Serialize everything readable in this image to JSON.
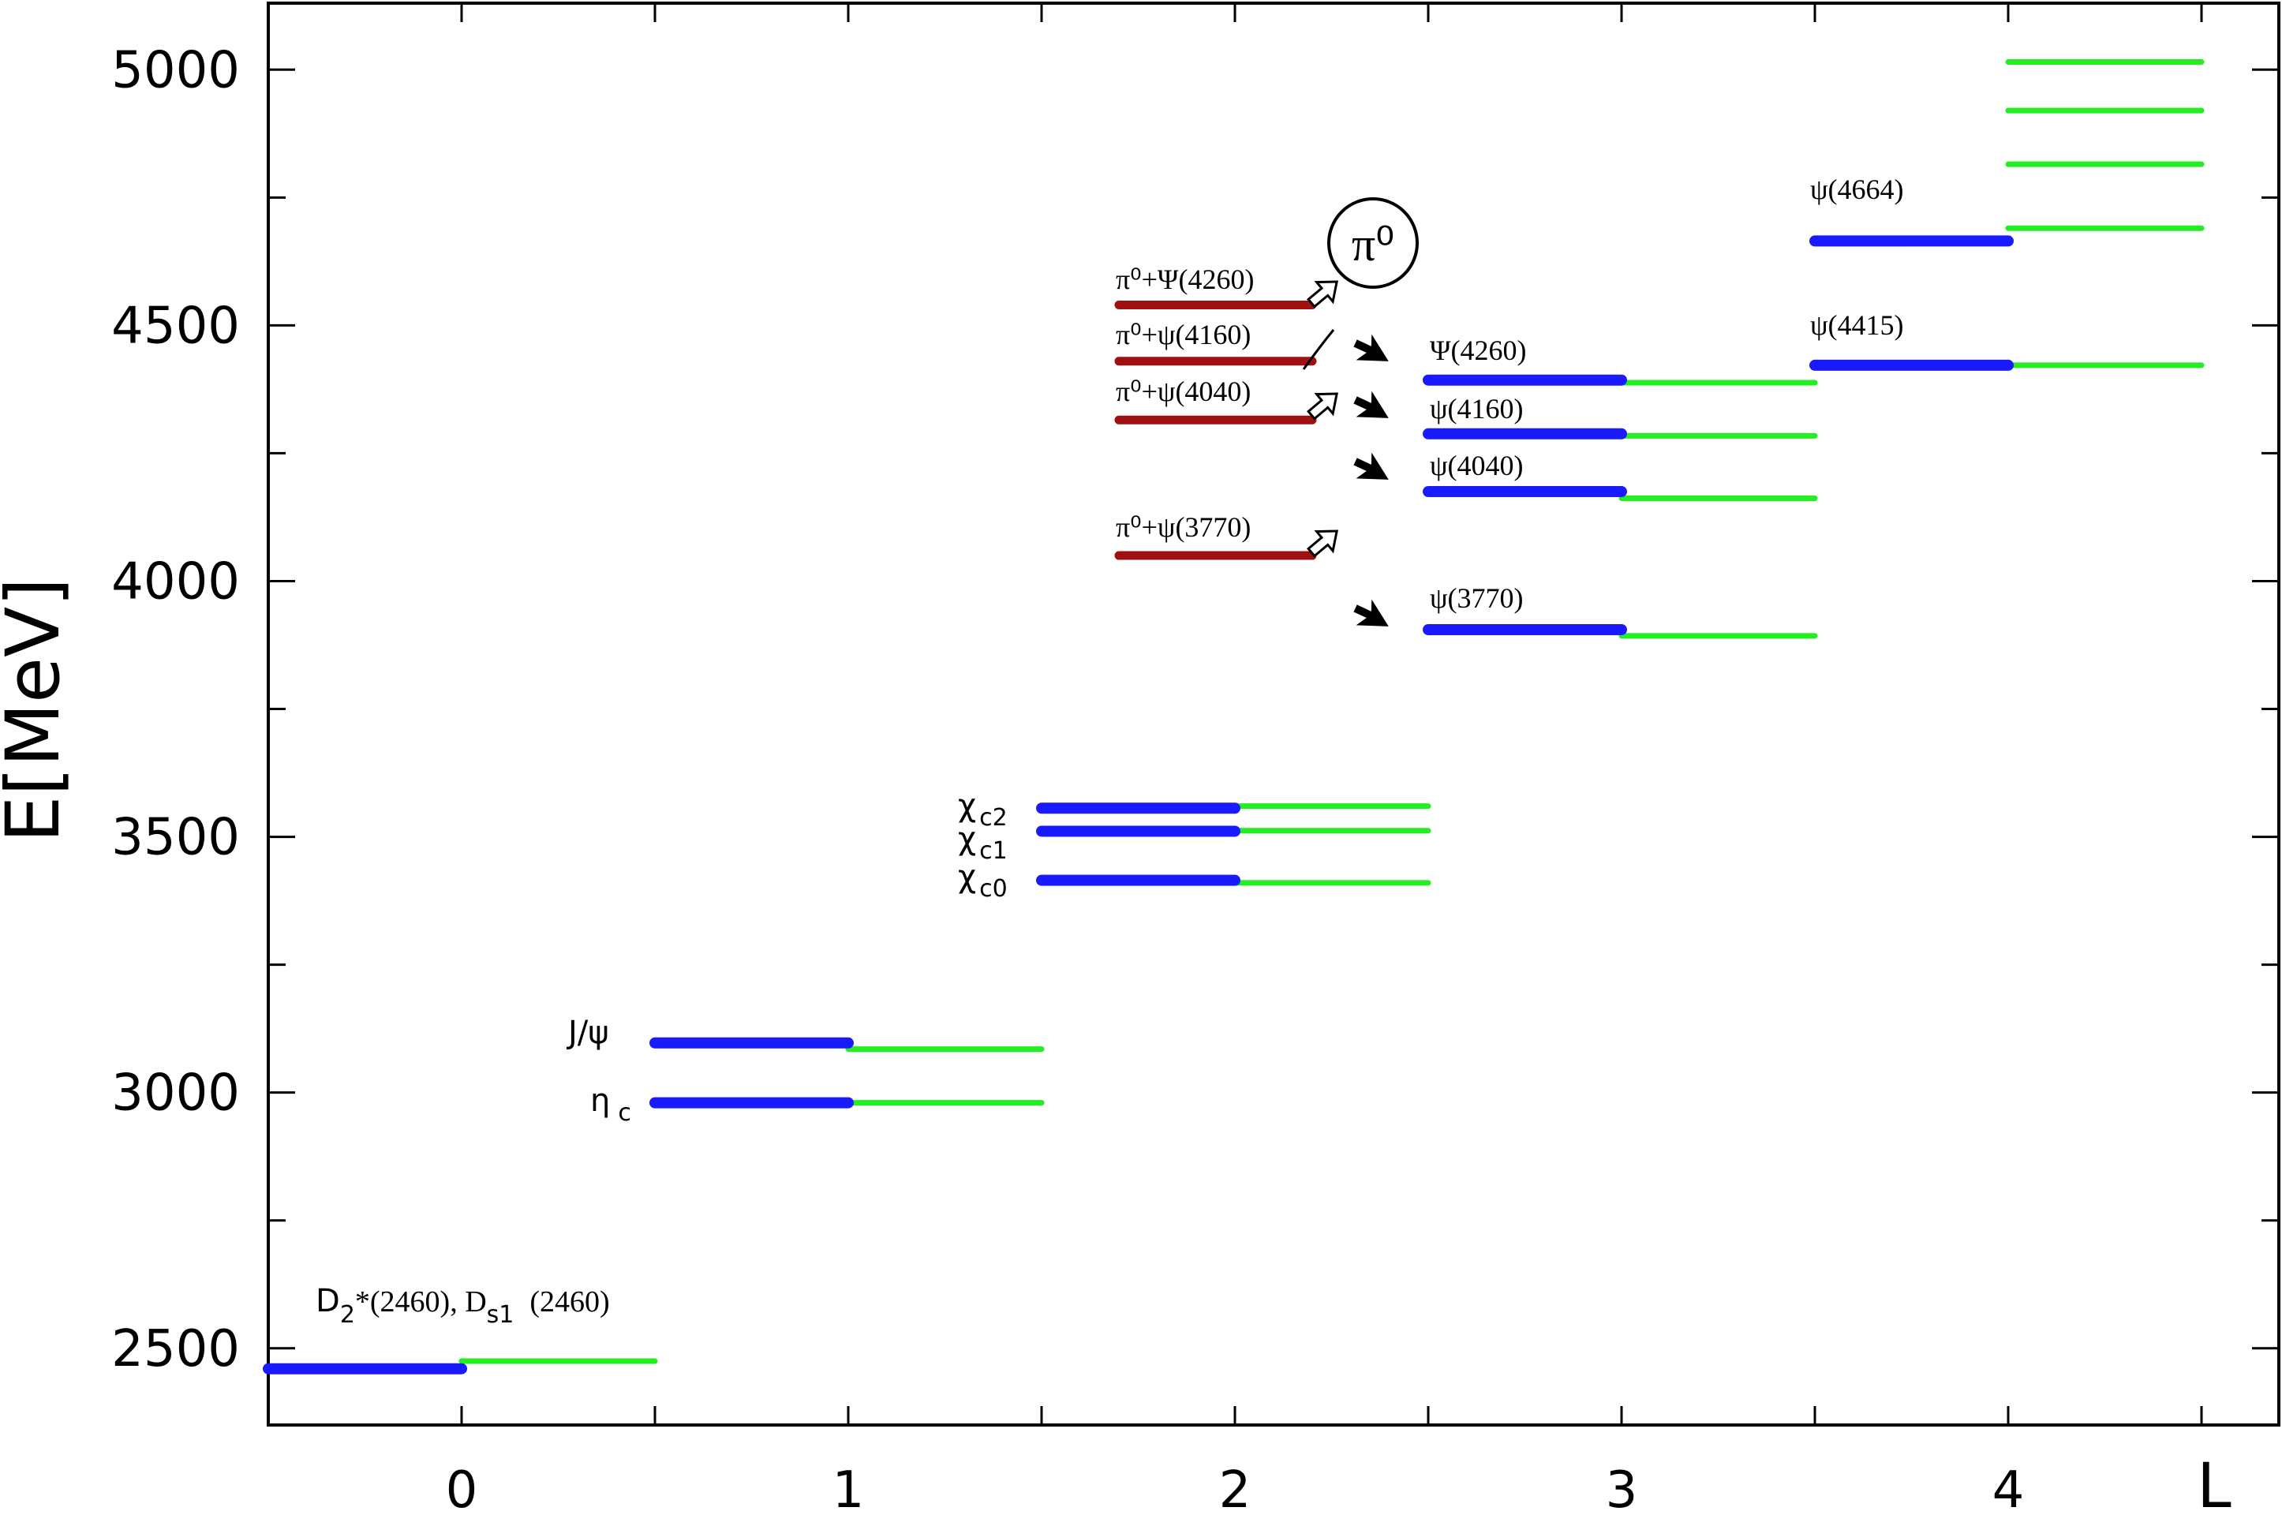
{
  "chart_data": {
    "type": "level-diagram",
    "xlabel": "L",
    "ylabel": "E[MeV]",
    "xlim": [
      -0.5,
      4.7
    ],
    "ylim": [
      2350,
      5130
    ],
    "x_ticks": [
      0,
      1,
      2,
      3,
      4
    ],
    "x_tick_labels": [
      "0",
      "1",
      "2",
      "3",
      "4"
    ],
    "y_ticks": [
      2500,
      3000,
      3500,
      4000,
      4500,
      5000
    ],
    "y_tick_labels": [
      "2500",
      "3000",
      "3500",
      "4000",
      "4500",
      "5000"
    ],
    "colors": {
      "blue": "#1a1aff",
      "green": "#22ee22",
      "red": "#a01010",
      "axis": "#000000"
    },
    "levels_blue": [
      {
        "x0": -0.5,
        "x1": 0.0,
        "E": 2460
      },
      {
        "x0": 0.5,
        "x1": 1.0,
        "E": 2980
      },
      {
        "x0": 0.5,
        "x1": 1.0,
        "E": 3097
      },
      {
        "x0": 1.5,
        "x1": 2.0,
        "E": 3415
      },
      {
        "x0": 1.5,
        "x1": 2.0,
        "E": 3511
      },
      {
        "x0": 1.5,
        "x1": 2.0,
        "E": 3556
      },
      {
        "x0": 2.5,
        "x1": 3.0,
        "E": 3905
      },
      {
        "x0": 2.5,
        "x1": 3.0,
        "E": 4175
      },
      {
        "x0": 2.5,
        "x1": 3.0,
        "E": 4288
      },
      {
        "x0": 2.5,
        "x1": 3.0,
        "E": 4393
      },
      {
        "x0": 3.5,
        "x1": 4.0,
        "E": 4422
      },
      {
        "x0": 3.5,
        "x1": 4.0,
        "E": 4665
      }
    ],
    "levels_green": [
      {
        "x0": 0.0,
        "x1": 0.5,
        "E": 2475
      },
      {
        "x0": 1.0,
        "x1": 1.5,
        "E": 2980
      },
      {
        "x0": 1.0,
        "x1": 1.5,
        "E": 3085
      },
      {
        "x0": 2.0,
        "x1": 2.5,
        "E": 3410
      },
      {
        "x0": 2.0,
        "x1": 2.5,
        "E": 3512
      },
      {
        "x0": 2.0,
        "x1": 2.5,
        "E": 3560
      },
      {
        "x0": 3.0,
        "x1": 3.5,
        "E": 3893
      },
      {
        "x0": 3.0,
        "x1": 3.5,
        "E": 4162
      },
      {
        "x0": 3.0,
        "x1": 3.5,
        "E": 4284
      },
      {
        "x0": 3.0,
        "x1": 3.5,
        "E": 4388
      },
      {
        "x0": 4.0,
        "x1": 4.5,
        "E": 4422
      },
      {
        "x0": 4.0,
        "x1": 4.5,
        "E": 4690
      },
      {
        "x0": 4.0,
        "x1": 4.5,
        "E": 4815
      },
      {
        "x0": 4.0,
        "x1": 4.5,
        "E": 4920
      },
      {
        "x0": 4.0,
        "x1": 4.5,
        "E": 5015
      }
    ],
    "levels_red": [
      {
        "x0": 1.7,
        "x1": 2.2,
        "E": 4050
      },
      {
        "x0": 1.7,
        "x1": 2.2,
        "E": 4315
      },
      {
        "x0": 1.7,
        "x1": 2.2,
        "E": 4430
      },
      {
        "x0": 1.7,
        "x1": 2.2,
        "E": 4540
      }
    ],
    "labels": {
      "ds": "D₂*(2460), D₅₁ (2460)",
      "ds_main": "D",
      "ds_sub1": "2",
      "ds_star": "*(2460), D",
      "ds_sub2": "s1",
      "ds_tail": "(2460)",
      "jpsi": "J/ψ",
      "etac": "η",
      "etac_sub": "c",
      "chi": "χ",
      "chic2_sub": "c2",
      "chic1_sub": "c1",
      "chic0_sub": "c0",
      "psi3770": "ψ(3770)",
      "psi4040": "ψ(4040)",
      "psi4160": "ψ(4160)",
      "Psi4260": "Ψ(4260)",
      "psi4415": "ψ(4415)",
      "psi4664": "ψ(4664)",
      "pi_psi3770": "π⁰+ψ(3770)",
      "pi_psi4040": "π⁰+ψ(4040)",
      "pi_psi4160": "π⁰+ψ(4160)",
      "pi_Psi4260": "π⁰+Ψ(4260)",
      "pi0": "π⁰"
    }
  }
}
